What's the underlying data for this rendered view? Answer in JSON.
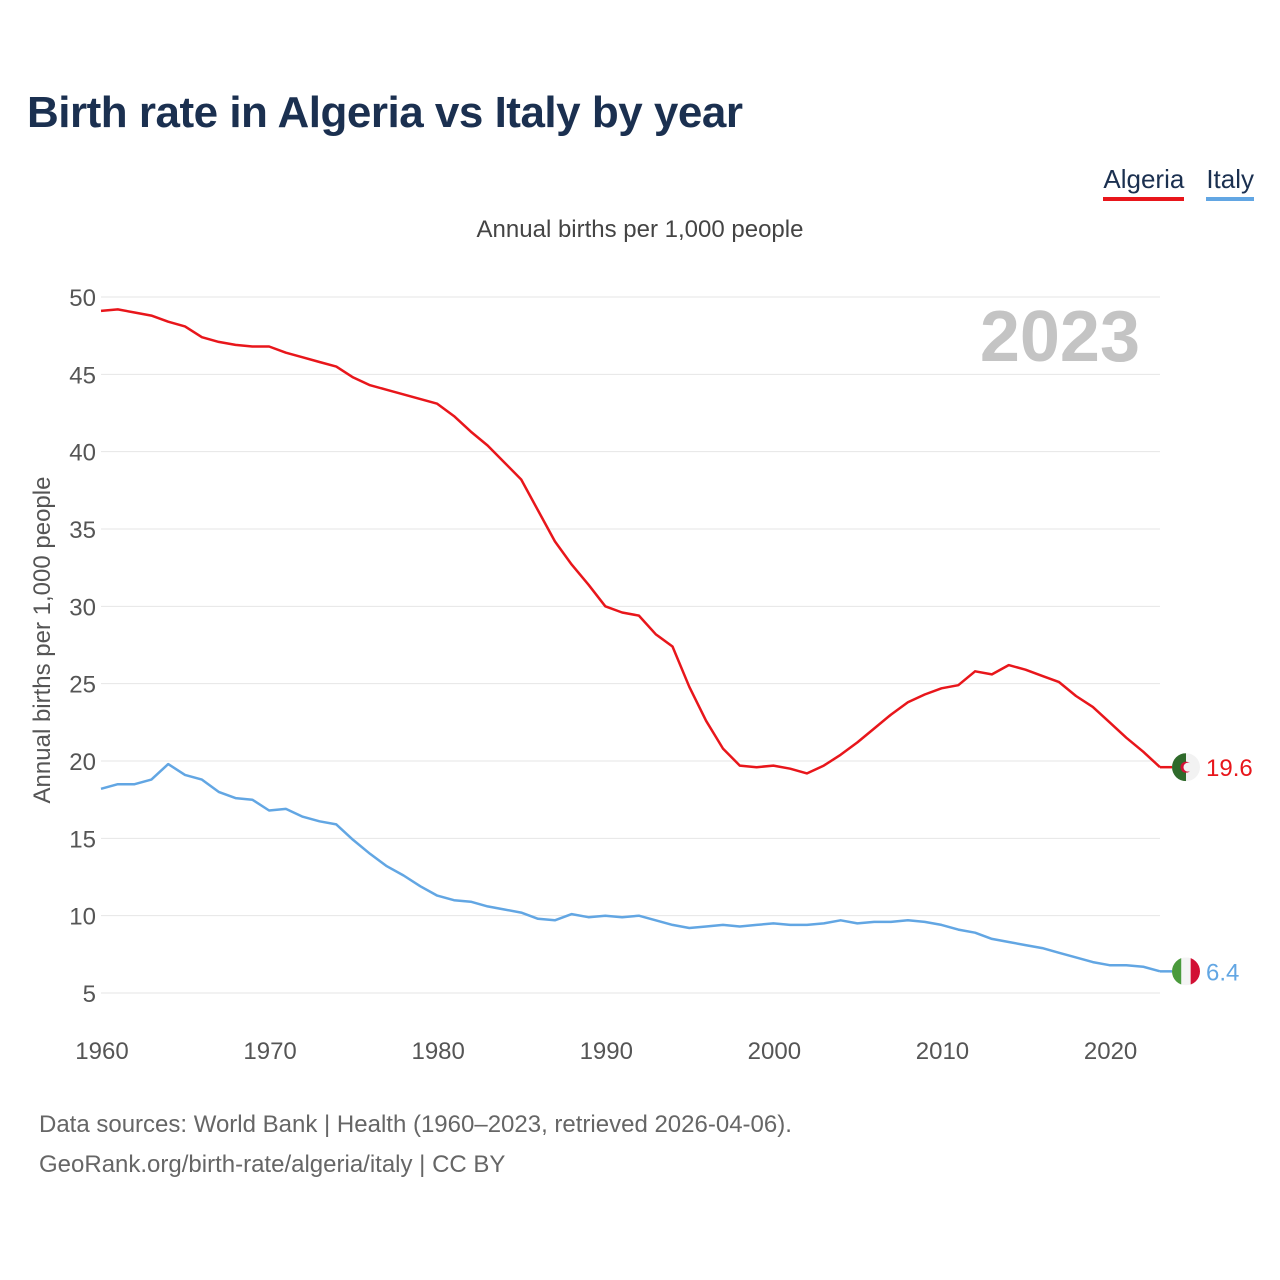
{
  "title": "Birth rate in Algeria vs Italy by year",
  "legend": [
    {
      "name": "Algeria",
      "color": "#e8161b"
    },
    {
      "name": "Italy",
      "color": "#62a6e3"
    }
  ],
  "subtitle": "Annual births per 1,000 people",
  "watermark_year": "2023",
  "footer": {
    "line1": "Data sources: World Bank | Health (1960–2023, retrieved 2026-04-06).",
    "line2": "GeoRank.org/birth-rate/algeria/italy | CC BY"
  },
  "chart_data": {
    "type": "line",
    "title": "Birth rate in Algeria vs Italy by year",
    "xlabel": "",
    "ylabel": "Annual births per 1,000 people",
    "xlim": [
      1960,
      2023
    ],
    "ylim": [
      5,
      50
    ],
    "x_ticks": [
      1960,
      1970,
      1980,
      1990,
      2000,
      2010,
      2020
    ],
    "y_ticks": [
      5,
      10,
      15,
      20,
      25,
      30,
      35,
      40,
      45,
      50
    ],
    "grid": true,
    "x": [
      1960,
      1961,
      1962,
      1963,
      1964,
      1965,
      1966,
      1967,
      1968,
      1969,
      1970,
      1971,
      1972,
      1973,
      1974,
      1975,
      1976,
      1977,
      1978,
      1979,
      1980,
      1981,
      1982,
      1983,
      1984,
      1985,
      1986,
      1987,
      1988,
      1989,
      1990,
      1991,
      1992,
      1993,
      1994,
      1995,
      1996,
      1997,
      1998,
      1999,
      2000,
      2001,
      2002,
      2003,
      2004,
      2005,
      2006,
      2007,
      2008,
      2009,
      2010,
      2011,
      2012,
      2013,
      2014,
      2015,
      2016,
      2017,
      2018,
      2019,
      2020,
      2021,
      2022,
      2023
    ],
    "series": [
      {
        "name": "Algeria",
        "color": "#e8161b",
        "end_label": "19.6",
        "values": [
          49.1,
          49.2,
          49.0,
          48.8,
          48.4,
          48.1,
          47.4,
          47.1,
          46.9,
          46.8,
          46.8,
          46.4,
          46.1,
          45.8,
          45.5,
          44.8,
          44.3,
          44.0,
          43.7,
          43.4,
          43.1,
          42.3,
          41.3,
          40.4,
          39.3,
          38.2,
          36.2,
          34.2,
          32.7,
          31.4,
          30.0,
          29.6,
          29.4,
          28.2,
          27.4,
          24.8,
          22.6,
          20.8,
          19.7,
          19.6,
          19.7,
          19.5,
          19.2,
          19.7,
          20.4,
          21.2,
          22.1,
          23.0,
          23.8,
          24.3,
          24.7,
          24.9,
          25.8,
          25.6,
          26.2,
          25.9,
          25.5,
          25.1,
          24.2,
          23.5,
          22.5,
          21.5,
          20.6,
          19.6
        ]
      },
      {
        "name": "Italy",
        "color": "#62a6e3",
        "end_label": "6.4",
        "values": [
          18.2,
          18.5,
          18.5,
          18.8,
          19.8,
          19.1,
          18.8,
          18.0,
          17.6,
          17.5,
          16.8,
          16.9,
          16.4,
          16.1,
          15.9,
          14.9,
          14.0,
          13.2,
          12.6,
          11.9,
          11.3,
          11.0,
          10.9,
          10.6,
          10.4,
          10.2,
          9.8,
          9.7,
          10.1,
          9.9,
          10.0,
          9.9,
          10.0,
          9.7,
          9.4,
          9.2,
          9.3,
          9.4,
          9.3,
          9.4,
          9.5,
          9.4,
          9.4,
          9.5,
          9.7,
          9.5,
          9.6,
          9.6,
          9.7,
          9.6,
          9.4,
          9.1,
          8.9,
          8.5,
          8.3,
          8.1,
          7.9,
          7.6,
          7.3,
          7.0,
          6.8,
          6.8,
          6.7,
          6.4
        ]
      }
    ]
  }
}
